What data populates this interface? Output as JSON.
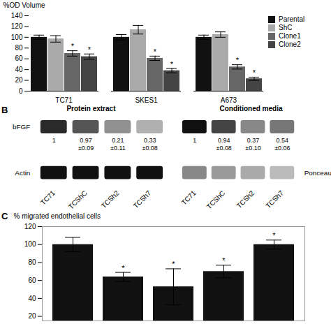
{
  "chart_data": [
    {
      "type": "bar",
      "categories": [
        "TC71",
        "SKES1",
        "A673"
      ],
      "series": [
        {
          "name": "Parental",
          "color": "#111111",
          "values": [
            100,
            100,
            100
          ],
          "errors": [
            4,
            5,
            4
          ]
        },
        {
          "name": "ShC",
          "color": "#aaaaaa",
          "values": [
            97,
            114,
            105
          ],
          "errors": [
            6,
            8,
            5
          ]
        },
        {
          "name": "Clone1",
          "color": "#666666",
          "values": [
            70,
            61,
            45
          ],
          "errors": [
            5,
            4,
            4
          ],
          "annotations": [
            "*",
            "*",
            "*"
          ]
        },
        {
          "name": "Clone2",
          "color": "#444444",
          "values": [
            64,
            38,
            23
          ],
          "errors": [
            5,
            4,
            3
          ],
          "annotations": [
            "*",
            "*",
            "*"
          ]
        }
      ],
      "ylabel": "%OD Volume",
      "ylim": [
        0,
        140
      ],
      "yticks": [
        0,
        20,
        40,
        60,
        80,
        100,
        120,
        140
      ],
      "grid": false,
      "legend": "right"
    },
    {
      "type": "blot",
      "title": "B",
      "categories": [
        "TC71",
        "TCShC",
        "TCSh2",
        "TCSh7"
      ],
      "data_labels": true,
      "series": [
        {
          "name": "Protein extract",
          "values": [
            1,
            0.97,
            0.21,
            0.33
          ],
          "errors": [
            null,
            0.09,
            0.11,
            0.08
          ],
          "error_labels": [
            null,
            "±0.09",
            "±0.11",
            "±0.08"
          ],
          "bands": [
            {
              "name": "bFGF",
              "colors": [
                "#2a2a2a",
                "#555555",
                "#909090",
                "#b0b0b0"
              ]
            },
            {
              "name": "Actin",
              "colors": [
                "#111111",
                "#111111",
                "#111111",
                "#111111"
              ]
            }
          ]
        },
        {
          "name": "Conditioned media",
          "values": [
            1,
            0.94,
            0.37,
            0.54
          ],
          "errors": [
            null,
            0.08,
            0.1,
            0.06
          ],
          "error_labels": [
            null,
            "±0.08",
            "±0.10",
            "±0.06"
          ],
          "bands": [
            {
              "name": "bFGF",
              "colors": [
                "#111111",
                "#444444",
                "#888888",
                "#777777"
              ]
            },
            {
              "name": "Ponceau",
              "colors": [
                "#888888",
                "#999999",
                "#aaaaaa",
                "#bbbbbb"
              ]
            }
          ]
        }
      ]
    },
    {
      "type": "bar",
      "title": "C",
      "categories": [
        null,
        null,
        null,
        null,
        null
      ],
      "values": [
        100,
        64,
        53,
        70,
        100
      ],
      "errors": [
        8,
        5,
        20,
        7,
        5
      ],
      "annotations": [
        null,
        "*",
        "*",
        "*",
        "*"
      ],
      "color": "#111111",
      "ylabel": "% migrated endothelial cells",
      "ylim": [
        15,
        120
      ],
      "yticks": [
        20,
        40,
        60,
        80,
        100,
        120
      ],
      "tick_labels": "y",
      "grid": false
    }
  ]
}
